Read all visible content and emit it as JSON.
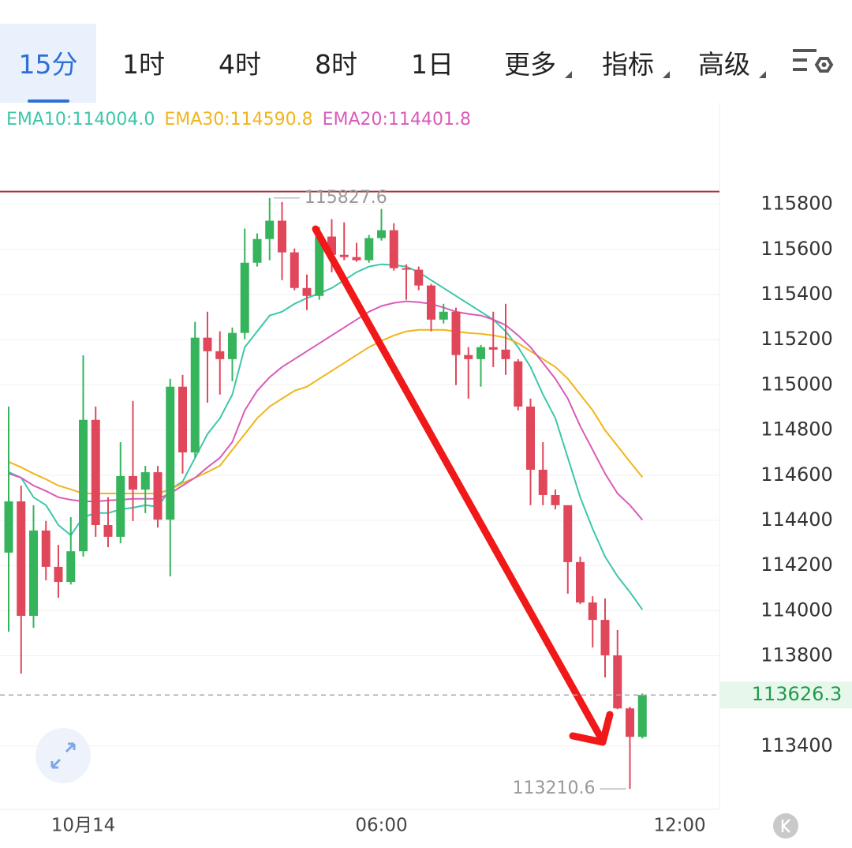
{
  "tabs": [
    "15分",
    "1时",
    "4时",
    "8时",
    "1日",
    "更多",
    "指标",
    "高级"
  ],
  "chart_data": {
    "type": "candlestick",
    "categories": [
      null,
      null,
      null,
      null,
      null,
      null,
      "10月14",
      null,
      null,
      null,
      null,
      null,
      null,
      null,
      null,
      null,
      null,
      null,
      null,
      null,
      null,
      null,
      null,
      null,
      null,
      null,
      null,
      null,
      null,
      null,
      "06:00",
      null,
      null,
      null,
      null,
      null,
      null,
      null,
      null,
      null,
      null,
      null,
      null,
      null,
      null,
      null,
      null,
      null,
      null,
      null,
      null,
      null,
      null,
      null,
      "12:00"
    ],
    "open": [
      114257,
      114484,
      113977,
      114355,
      114194,
      114127,
      114263,
      114845,
      114379,
      114327,
      114596,
      114536,
      114613,
      114403,
      114992,
      114701,
      115209,
      115149,
      115114,
      115230,
      115541,
      115646,
      115727,
      115587,
      115429,
      115394,
      115657,
      115576,
      115566,
      115552,
      115650,
      115685,
      115517,
      115510,
      115440,
      115289,
      115324,
      115132,
      115114,
      115167,
      115156,
      115104,
      114904,
      114624,
      114512,
      114467,
      114215,
      114036,
      113959,
      113802,
      113567,
      113441,
      null,
      null,
      null
    ],
    "high": [
      114904,
      114554,
      114467,
      114397,
      114291,
      114414,
      115131,
      114904,
      114502,
      114746,
      114929,
      114641,
      114641,
      115027,
      115044,
      115279,
      115324,
      115237,
      115254,
      115692,
      115671,
      115827.6,
      115810,
      115604,
      115489,
      115699,
      115734,
      115720,
      115629,
      115664,
      115779,
      115716,
      115534,
      115524,
      115447,
      115359,
      115342,
      115167,
      115177,
      115324,
      115359,
      115114,
      114939,
      114746,
      114537,
      114467,
      114239,
      114064,
      114054,
      113914,
      113574,
      113633,
      null,
      null,
      null
    ],
    "low": [
      113907,
      113721,
      113924,
      114134,
      114057,
      114116,
      114239,
      114327,
      114281,
      114298,
      114397,
      114432,
      114368,
      114152,
      114607,
      114677,
      114921,
      114957,
      115016,
      115202,
      115524,
      115552,
      115464,
      115419,
      115331,
      115377,
      115499,
      115552,
      115545,
      115541,
      115639,
      115506,
      115377,
      115419,
      115237,
      115272,
      114999,
      114939,
      114992,
      115079,
      115044,
      114887,
      114467,
      114467,
      114449,
      114075,
      114029,
      113837,
      113704,
      113563,
      113210.6,
      113434,
      null,
      null,
      null
    ],
    "close": [
      114484,
      113977,
      114355,
      114194,
      114127,
      114263,
      114845,
      114379,
      114327,
      114596,
      114536,
      114613,
      114403,
      114992,
      114701,
      115209,
      115149,
      115114,
      115230,
      115541,
      115646,
      115727,
      115587,
      115429,
      115394,
      115657,
      115576,
      115566,
      115552,
      115650,
      115685,
      115517,
      115510,
      115440,
      115289,
      115324,
      115132,
      115114,
      115167,
      115156,
      115114,
      114904,
      114624,
      114512,
      114467,
      114215,
      114036,
      113959,
      113802,
      113567,
      113441,
      113626.3,
      null,
      null,
      null
    ],
    "up_color": "#35b45c",
    "down_color": "#e0475a",
    "series": [
      {
        "name": "EMA10:114004.0",
        "color": "#3cc7aa",
        "values": [
          114614,
          114589,
          114502,
          114467,
          114379,
          114334,
          114414,
          114432,
          114432,
          114449,
          114456,
          114467,
          114460,
          114537,
          114572,
          114677,
          114782,
          114852,
          114957,
          115167,
          115237,
          115307,
          115324,
          115359,
          115384,
          115405,
          115429,
          115464,
          115499,
          115524,
          115534,
          115531,
          115524,
          115499,
          115464,
          115429,
          115394,
          115359,
          115324,
          115289,
          115237,
          115167,
          115079,
          114957,
          114852,
          114677,
          114502,
          114362,
          114239,
          114152,
          114082,
          114004.0,
          null,
          null,
          null
        ]
      },
      {
        "name": "EMA30:114590.8",
        "color": "#f0b51c",
        "values": [
          114659,
          114635,
          114607,
          114582,
          114554,
          114537,
          114519,
          114519,
          114519,
          114519,
          114519,
          114519,
          114519,
          114537,
          114565,
          114589,
          114614,
          114642,
          114712,
          114782,
          114852,
          114904,
          114939,
          114974,
          114992,
          115027,
          115062,
          115097,
          115132,
          115167,
          115195,
          115219,
          115237,
          115244,
          115244,
          115244,
          115237,
          115230,
          115226,
          115219,
          115209,
          115184,
          115149,
          115114,
          115079,
          115027,
          114957,
          114887,
          114799,
          114729,
          114659,
          114590.8,
          null,
          null,
          null
        ]
      },
      {
        "name": "EMA20:114401.8",
        "color": "#d95cb8",
        "values": [
          114607,
          114589,
          114554,
          114530,
          114502,
          114491,
          114484,
          114484,
          114488,
          114491,
          114495,
          114495,
          114495,
          114519,
          114554,
          114589,
          114635,
          114677,
          114747,
          114887,
          114974,
          115034,
          115079,
          115114,
          115149,
          115184,
          115219,
          115254,
          115289,
          115324,
          115349,
          115363,
          115370,
          115366,
          115359,
          115342,
          115324,
          115314,
          115307,
          115289,
          115265,
          115219,
          115167,
          115097,
          115027,
          114939,
          114817,
          114712,
          114607,
          114519,
          114467,
          114401.8,
          null,
          null,
          null
        ]
      }
    ],
    "reference_line": {
      "value": 115856,
      "color": "#a8343c"
    },
    "ylim": [
      113120,
      116250
    ],
    "yticks": [
      113400,
      113800,
      114000,
      114200,
      114400,
      114600,
      114800,
      115000,
      115200,
      115400,
      115600,
      115800
    ],
    "grid": true
  }
}
